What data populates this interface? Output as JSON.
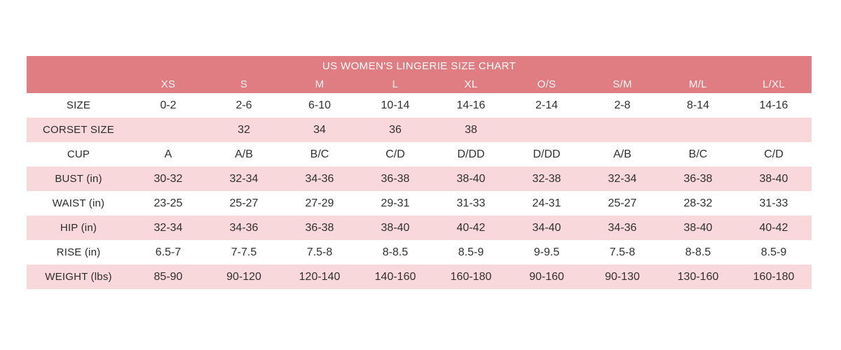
{
  "page": {
    "background": "#ffffff"
  },
  "chart_data": {
    "type": "table",
    "title": "US WOMEN'S LINGERIE SIZE CHART",
    "columns": [
      "XS",
      "S",
      "M",
      "L",
      "XL",
      "O/S",
      "S/M",
      "M/L",
      "L/XL"
    ],
    "rows": [
      {
        "label": "SIZE",
        "values": [
          "0-2",
          "2-6",
          "6-10",
          "10-14",
          "14-16",
          "2-14",
          "2-8",
          "8-14",
          "14-16"
        ]
      },
      {
        "label": "CORSET SIZE",
        "values": [
          "",
          "32",
          "34",
          "36",
          "38",
          "",
          "",
          "",
          ""
        ]
      },
      {
        "label": "CUP",
        "values": [
          "A",
          "A/B",
          "B/C",
          "C/D",
          "D/DD",
          "D/DD",
          "A/B",
          "B/C",
          "C/D"
        ]
      },
      {
        "label": "BUST (in)",
        "values": [
          "30-32",
          "32-34",
          "34-36",
          "36-38",
          "38-40",
          "32-38",
          "32-34",
          "36-38",
          "38-40"
        ]
      },
      {
        "label": "WAIST (in)",
        "values": [
          "23-25",
          "25-27",
          "27-29",
          "29-31",
          "31-33",
          "24-31",
          "25-27",
          "28-32",
          "31-33"
        ]
      },
      {
        "label": "HIP (in)",
        "values": [
          "32-34",
          "34-36",
          "36-38",
          "38-40",
          "40-42",
          "34-40",
          "34-36",
          "38-40",
          "40-42"
        ]
      },
      {
        "label": "RISE (in)",
        "values": [
          "6.5-7",
          "7-7.5",
          "7.5-8",
          "8-8.5",
          "8.5-9",
          "9-9.5",
          "7.5-8",
          "8-8.5",
          "8.5-9"
        ]
      },
      {
        "label": "WEIGHT (lbs)",
        "values": [
          "85-90",
          "90-120",
          "120-140",
          "140-160",
          "160-180",
          "90-160",
          "90-130",
          "130-160",
          "160-180"
        ]
      }
    ],
    "layout": {
      "header_bg": "#e07d82",
      "header_text": "#ffffff",
      "alt_row_bg": "#f9d8db",
      "plain_row_bg": "#ffffff",
      "body_text": "#303030",
      "alternation": [
        "plain",
        "alt",
        "plain",
        "alt",
        "plain",
        "alt",
        "plain",
        "alt"
      ]
    }
  }
}
